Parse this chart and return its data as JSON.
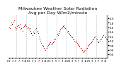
{
  "title": "Milwaukee Weather Solar Radiation\nAvg per Day W/m2/minute",
  "title_fontsize": 4.5,
  "bg_color": "#ffffff",
  "plot_bg_color": "#ffffff",
  "grid_color": "#aaaaaa",
  "dot_color_main": "#ff0000",
  "dot_color_alt": "#000000",
  "ylabel_right": [
    "2.0",
    "1.8",
    "1.6",
    "1.4",
    "1.2",
    "1.0",
    "0.8",
    "0.6",
    "0.4"
  ],
  "ylim": [
    0.25,
    2.15
  ],
  "xlim": [
    0,
    120
  ],
  "vgrid_positions": [
    10,
    22,
    34,
    46,
    58,
    70,
    82,
    94,
    106,
    118
  ],
  "data_x": [
    1,
    2,
    3,
    4,
    5,
    6,
    7,
    8,
    9,
    10,
    11,
    12,
    13,
    14,
    15,
    16,
    17,
    18,
    19,
    20,
    21,
    22,
    23,
    24,
    25,
    26,
    27,
    28,
    29,
    30,
    31,
    32,
    33,
    34,
    35,
    36,
    37,
    38,
    39,
    40,
    41,
    42,
    43,
    44,
    45,
    46,
    47,
    48,
    49,
    50,
    51,
    52,
    53,
    54,
    55,
    56,
    57,
    58,
    59,
    60,
    61,
    62,
    63,
    64,
    65,
    66,
    67,
    68,
    69,
    70,
    71,
    72,
    73,
    74,
    75,
    76,
    77,
    78,
    79,
    80,
    81,
    82,
    83,
    84,
    85,
    86,
    87,
    88,
    89,
    90,
    91,
    92,
    93,
    94,
    95,
    96,
    97,
    98,
    99,
    100,
    101,
    102,
    103,
    104,
    105,
    106,
    107,
    108,
    109,
    110,
    111,
    112,
    113,
    114,
    115,
    116,
    117,
    118,
    119,
    120
  ],
  "data_y": [
    1.6,
    1.55,
    1.7,
    1.8,
    1.75,
    1.85,
    1.9,
    1.6,
    1.5,
    1.55,
    1.65,
    1.7,
    1.6,
    1.75,
    1.5,
    1.55,
    1.45,
    1.6,
    1.65,
    1.7,
    1.75,
    1.65,
    1.55,
    1.6,
    1.5,
    1.55,
    1.45,
    1.35,
    1.25,
    1.4,
    1.35,
    1.4,
    1.5,
    1.55,
    1.45,
    1.35,
    1.2,
    1.1,
    1.0,
    0.9,
    0.8,
    0.75,
    0.7,
    0.65,
    0.6,
    0.7,
    0.75,
    0.8,
    0.85,
    0.9,
    0.95,
    0.85,
    0.9,
    0.95,
    1.0,
    1.05,
    1.1,
    1.2,
    1.3,
    1.25,
    1.35,
    1.45,
    1.5,
    1.55,
    1.6,
    1.65,
    1.7,
    1.6,
    1.55,
    1.5,
    1.4,
    1.45,
    1.35,
    1.3,
    1.25,
    1.2,
    1.15,
    1.1,
    1.05,
    1.0,
    0.95,
    1.0,
    0.9,
    0.85,
    0.8,
    0.75,
    0.7,
    0.65,
    0.6,
    0.55,
    0.5,
    0.55,
    0.6,
    0.65,
    0.7,
    0.75,
    0.8,
    0.85,
    0.9,
    0.95,
    1.0,
    1.05,
    1.1,
    1.15,
    1.2,
    1.1,
    1.05,
    1.0,
    0.95,
    1.0,
    1.05,
    1.1,
    1.15,
    1.2,
    1.25,
    1.2,
    1.15,
    1.1,
    1.05,
    1.1
  ],
  "data_colors": [
    "#ff0000",
    "#ff0000",
    "#ff0000",
    "#ff0000",
    "#000000",
    "#ff0000",
    "#ff0000",
    "#000000",
    "#ff0000",
    "#ff0000",
    "#ff0000",
    "#000000",
    "#ff0000",
    "#ff0000",
    "#000000",
    "#ff0000",
    "#ff0000",
    "#ff0000",
    "#ff0000",
    "#000000",
    "#ff0000",
    "#000000",
    "#ff0000",
    "#ff0000",
    "#ff0000",
    "#000000",
    "#ff0000",
    "#000000",
    "#ff0000",
    "#ff0000",
    "#000000",
    "#ff0000",
    "#ff0000",
    "#000000",
    "#ff0000",
    "#ff0000",
    "#ff0000",
    "#000000",
    "#ff0000",
    "#ff0000",
    "#ff0000",
    "#000000",
    "#ff0000",
    "#ff0000",
    "#ff0000",
    "#000000",
    "#ff0000",
    "#ff0000",
    "#000000",
    "#ff0000",
    "#ff0000",
    "#000000",
    "#ff0000",
    "#ff0000",
    "#ff0000",
    "#000000",
    "#ff0000",
    "#ff0000",
    "#000000",
    "#ff0000",
    "#ff0000",
    "#ff0000",
    "#000000",
    "#ff0000",
    "#ff0000",
    "#000000",
    "#ff0000",
    "#ff0000",
    "#ff0000",
    "#ff0000",
    "#ff0000",
    "#000000",
    "#ff0000",
    "#ff0000",
    "#ff0000",
    "#000000",
    "#ff0000",
    "#ff0000",
    "#ff0000",
    "#ff0000",
    "#ff0000",
    "#000000",
    "#ff0000",
    "#ff0000",
    "#ff0000",
    "#000000",
    "#ff0000",
    "#ff0000",
    "#ff0000",
    "#ff0000",
    "#ff0000",
    "#000000",
    "#ff0000",
    "#ff0000",
    "#000000",
    "#ff0000",
    "#ff0000",
    "#ff0000",
    "#000000",
    "#ff0000",
    "#ff0000",
    "#ff0000",
    "#ff0000",
    "#ff0000",
    "#000000",
    "#ff0000",
    "#ff0000",
    "#ff0000",
    "#000000",
    "#ff0000",
    "#ff0000",
    "#ff0000",
    "#ff0000",
    "#000000",
    "#ff0000",
    "#ff0000",
    "#ff0000",
    "#000000",
    "#ff0000",
    "#ff0000",
    "#ff0000"
  ],
  "xtick_positions": [
    1,
    5,
    9,
    13,
    17,
    21,
    25,
    29,
    33,
    37,
    41,
    45,
    49,
    53,
    57,
    61,
    65,
    69,
    73,
    77,
    81,
    85,
    89,
    93,
    97,
    101,
    105,
    109,
    113,
    117
  ],
  "xtick_labels": [
    "'21",
    "3",
    "5",
    "7",
    "9",
    "11",
    "'22",
    "3",
    "5",
    "7",
    "9",
    "11",
    "'23",
    "3",
    "5",
    "7",
    "9",
    "11",
    "'24",
    "3",
    "5",
    "7",
    "9",
    "11",
    "'25",
    "3",
    "5",
    "7",
    "9",
    "11"
  ]
}
